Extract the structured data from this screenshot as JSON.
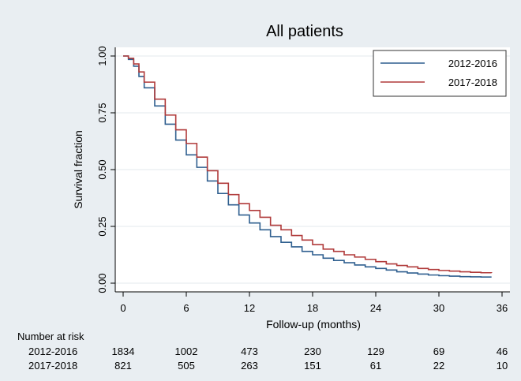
{
  "chart_data": {
    "type": "line",
    "title": "All patients",
    "xlabel": "Follow-up (months)",
    "ylabel": "Survival fraction",
    "xlim": [
      0,
      36
    ],
    "ylim": [
      0,
      1
    ],
    "x_ticks": [
      0,
      6,
      12,
      18,
      24,
      30,
      36
    ],
    "y_ticks": [
      0.0,
      0.25,
      0.5,
      0.75,
      1.0
    ],
    "y_tick_labels": [
      "0.00",
      "0.25",
      "0.50",
      "0.75",
      "1.00"
    ],
    "grid": true,
    "legend_position": "top-right",
    "series": [
      {
        "name": "2012-2016",
        "color": "#2f5f8f",
        "x": [
          0,
          0.5,
          1,
          1.5,
          2,
          3,
          4,
          5,
          6,
          7,
          8,
          9,
          10,
          11,
          12,
          13,
          14,
          15,
          16,
          17,
          18,
          19,
          20,
          21,
          22,
          23,
          24,
          25,
          26,
          27,
          28,
          29,
          30,
          31,
          32,
          33,
          34,
          35
        ],
        "y": [
          1.0,
          0.985,
          0.955,
          0.91,
          0.86,
          0.78,
          0.7,
          0.63,
          0.565,
          0.51,
          0.45,
          0.395,
          0.345,
          0.3,
          0.265,
          0.235,
          0.205,
          0.18,
          0.16,
          0.14,
          0.125,
          0.11,
          0.1,
          0.09,
          0.08,
          0.072,
          0.065,
          0.058,
          0.05,
          0.045,
          0.04,
          0.036,
          0.033,
          0.031,
          0.029,
          0.028,
          0.027,
          0.027
        ]
      },
      {
        "name": "2017-2018",
        "color": "#b03a3a",
        "x": [
          0,
          0.5,
          1,
          1.5,
          2,
          3,
          4,
          5,
          6,
          7,
          8,
          9,
          10,
          11,
          12,
          13,
          14,
          15,
          16,
          17,
          18,
          19,
          20,
          21,
          22,
          23,
          24,
          25,
          26,
          27,
          28,
          29,
          30,
          31,
          32,
          33,
          34,
          35
        ],
        "y": [
          1.0,
          0.99,
          0.965,
          0.93,
          0.885,
          0.81,
          0.74,
          0.675,
          0.615,
          0.555,
          0.495,
          0.44,
          0.39,
          0.35,
          0.32,
          0.29,
          0.255,
          0.235,
          0.21,
          0.19,
          0.17,
          0.15,
          0.14,
          0.125,
          0.115,
          0.105,
          0.095,
          0.085,
          0.078,
          0.072,
          0.065,
          0.06,
          0.056,
          0.053,
          0.05,
          0.048,
          0.046,
          0.045
        ]
      }
    ],
    "risk_table": {
      "title": "Number at risk",
      "rows": [
        {
          "label": "2012-2016",
          "values": [
            1834,
            1002,
            473,
            230,
            129,
            69,
            46
          ]
        },
        {
          "label": "2017-2018",
          "values": [
            821,
            505,
            263,
            151,
            61,
            22,
            10
          ]
        }
      ]
    }
  }
}
